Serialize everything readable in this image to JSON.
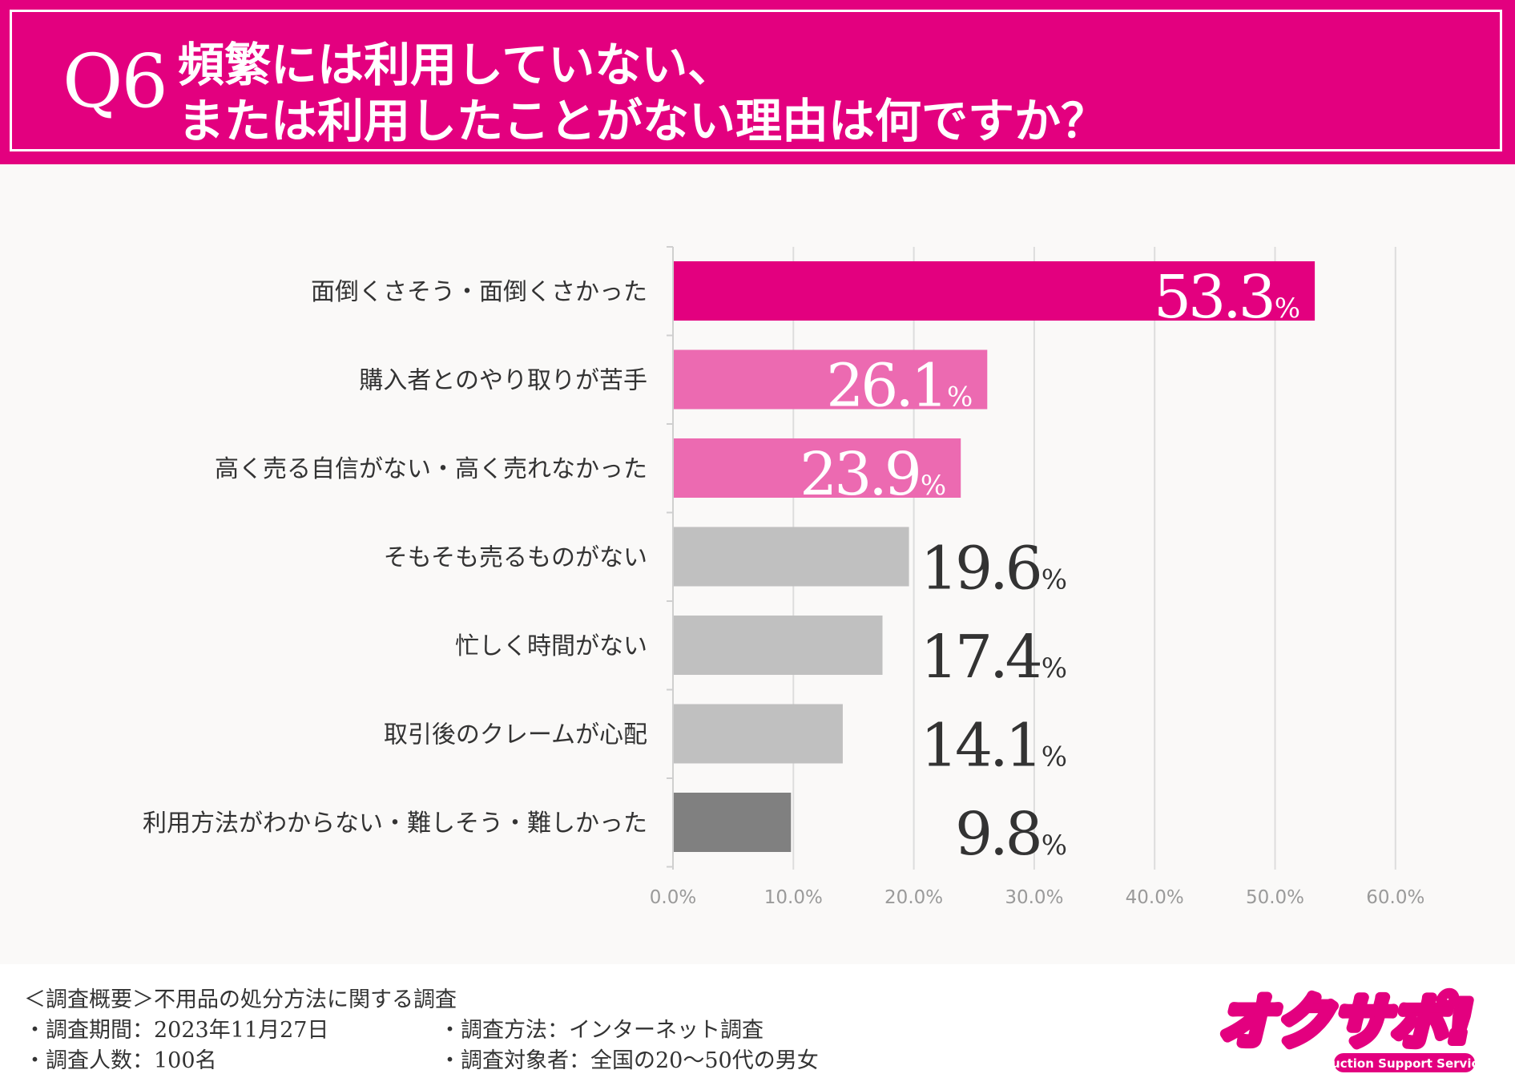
{
  "header": {
    "q_number": "Q6",
    "title_line1": "頻繁には利用していない、",
    "title_line2": "または利用したことがない理由は何ですか？"
  },
  "chart_data": {
    "type": "bar",
    "orientation": "horizontal",
    "title": "頻繁には利用していない、または利用したことがない理由は何ですか？",
    "categories": [
      "面倒くさそう・面倒くさかった",
      "購入者とのやり取りが苦手",
      "高く売る自信がない・高く売れなかった",
      "そもそも売るものがない",
      "忙しく時間がない",
      "取引後のクレームが心配",
      "利用方法がわからない・難しそう・難しかった"
    ],
    "values": [
      53.3,
      26.1,
      23.9,
      19.6,
      17.4,
      14.1,
      9.8
    ],
    "value_labels": [
      "53.3",
      "26.1",
      "23.9",
      "19.6",
      "17.4",
      "14.1",
      "9.8"
    ],
    "unit": "%",
    "xlim": [
      0,
      60
    ],
    "xticks": [
      0,
      10,
      20,
      30,
      40,
      50,
      60
    ],
    "xtick_labels": [
      "0.0%",
      "10.0%",
      "20.0%",
      "30.0%",
      "40.0%",
      "50.0%",
      "60.0%"
    ],
    "grid": true,
    "bar_colors": [
      "#e3007f",
      "#ec6ab1",
      "#ec6ab1",
      "#c0c0c0",
      "#c0c0c0",
      "#c0c0c0",
      "#808080"
    ],
    "label_colors": [
      "#ffffff",
      "#ffffff",
      "#ffffff",
      "#333333",
      "#333333",
      "#333333",
      "#333333"
    ]
  },
  "footer": {
    "overview": "＜調査概要＞不用品の処分方法に関する調査",
    "period": "・調査期間：2023年11月27日",
    "method": "・調査方法：インターネット調査",
    "count": "・調査人数：100名",
    "target": "・調査対象者：全国の20～50代の男女"
  },
  "logo": {
    "text": "オクサポ!",
    "subtext": "Auction Support Service",
    "color": "#e3007f"
  }
}
